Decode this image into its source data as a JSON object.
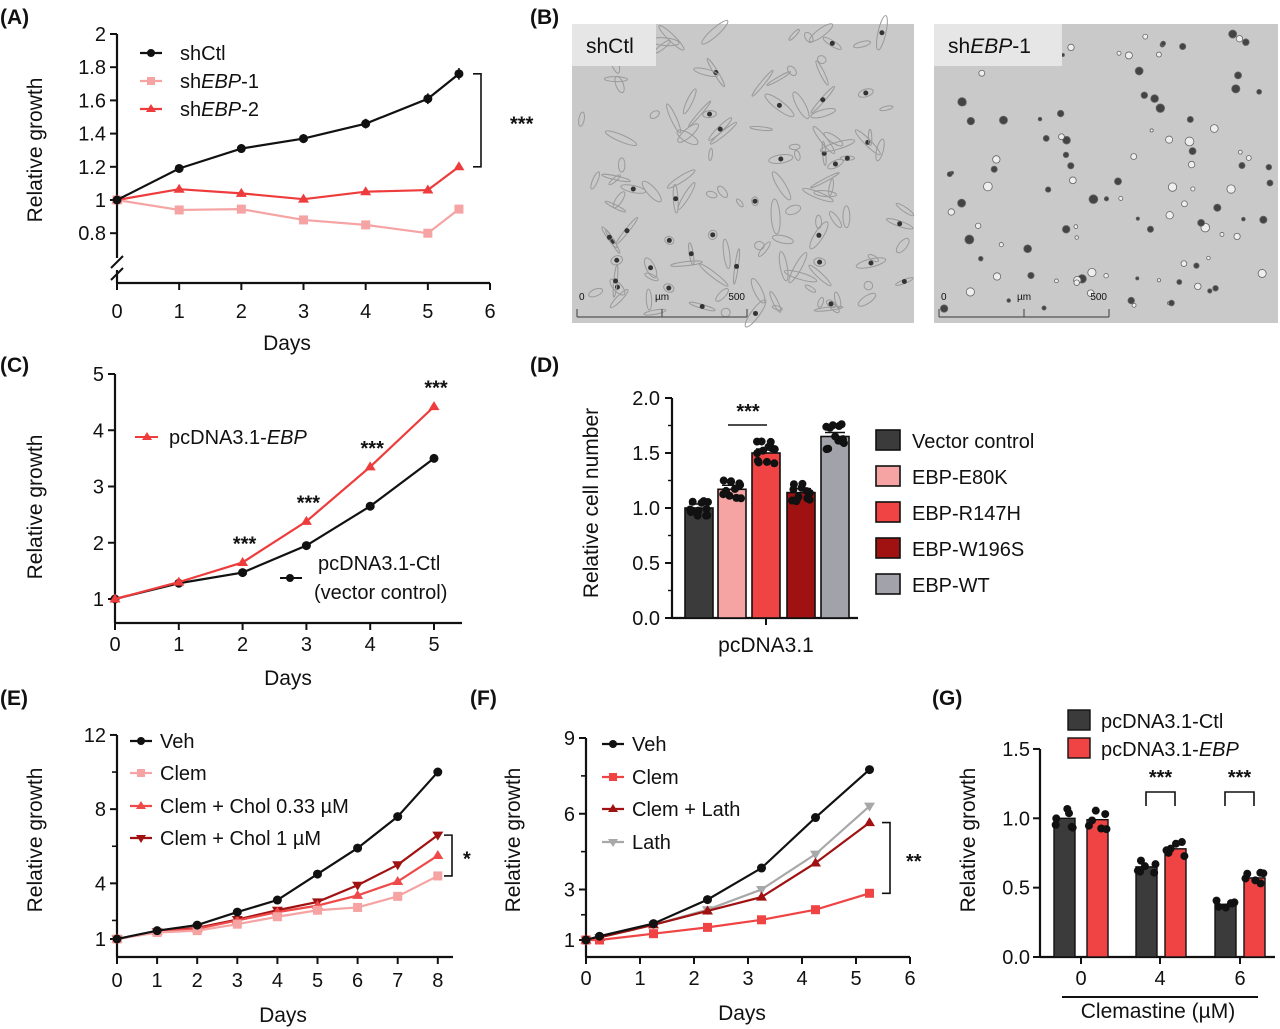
{
  "panels": [
    "(A)",
    "(B)",
    "(C)",
    "(D)",
    "(E)",
    "(F)",
    "(G)"
  ],
  "micrographs": [
    {
      "label": "shCtl",
      "scale": [
        "0",
        "µm",
        "500"
      ]
    },
    {
      "label_parts": [
        "sh",
        "EBP",
        "-1"
      ],
      "scale": [
        "0",
        "µm",
        "500"
      ]
    }
  ],
  "chart_data": [
    {
      "id": "A",
      "type": "line",
      "xlabel": "Days",
      "ylabel": "Relative growth",
      "xlim": [
        0,
        6
      ],
      "ylim": [
        0.8,
        2
      ],
      "y_axis_break": true,
      "xticks": [
        "0",
        "1",
        "2",
        "3",
        "4",
        "5",
        "6"
      ],
      "yticks": [
        "0.8",
        "1",
        "1.2",
        "1.4",
        "1.6",
        "1.8",
        "2"
      ],
      "series": [
        {
          "label_parts": [
            "shCtl",
            "",
            ""
          ],
          "color": "#111111",
          "marker": "circle",
          "x": [
            0,
            1,
            2,
            3,
            4,
            5,
            5.5
          ],
          "y": [
            1,
            1.19,
            1.31,
            1.37,
            1.46,
            1.61,
            1.76
          ]
        },
        {
          "label_parts": [
            "sh",
            "EBP",
            "-1"
          ],
          "color": "#f5a3a3",
          "marker": "square",
          "x": [
            0,
            1,
            2,
            3,
            4,
            5,
            5.5
          ],
          "y": [
            1,
            0.94,
            0.945,
            0.88,
            0.85,
            0.8,
            0.945
          ]
        },
        {
          "label_parts": [
            "sh",
            "EBP",
            "-2"
          ],
          "color": "#ee3b3b",
          "marker": "triangle-up",
          "x": [
            0,
            1,
            2,
            3,
            4,
            5,
            5.5
          ],
          "y": [
            1,
            1.065,
            1.04,
            1.005,
            1.05,
            1.06,
            1.2
          ]
        }
      ],
      "annotations": [
        {
          "text": "***",
          "between": [
            1.76,
            1.2
          ]
        }
      ]
    },
    {
      "id": "C",
      "type": "line",
      "xlabel": "Days",
      "ylabel": "Relative growth",
      "xlim": [
        0,
        5
      ],
      "ylim": [
        1,
        5
      ],
      "xticks": [
        "0",
        "1",
        "2",
        "3",
        "4",
        "5"
      ],
      "yticks": [
        "1",
        "2",
        "3",
        "4",
        "5"
      ],
      "series": [
        {
          "label_parts": [
            "pcDNA3.1-",
            "EBP",
            ""
          ],
          "color": "#ee3b3b",
          "marker": "triangle-up",
          "x": [
            0,
            1,
            2,
            3,
            4,
            5
          ],
          "y": [
            1,
            1.3,
            1.65,
            2.38,
            3.35,
            4.42
          ]
        },
        {
          "label_parts": [
            "pcDNA3.1-Ctl",
            "",
            ""
          ],
          "label2": "(vector control)",
          "color": "#111111",
          "marker": "circle",
          "x": [
            0,
            1,
            2,
            3,
            4,
            5
          ],
          "y": [
            1,
            1.28,
            1.47,
            1.95,
            2.65,
            3.5
          ]
        }
      ],
      "annotations": [
        {
          "text": "***",
          "x": 2
        },
        {
          "text": "***",
          "x": 3
        },
        {
          "text": "***",
          "x": 4
        },
        {
          "text": "***",
          "x": 5
        }
      ]
    },
    {
      "id": "D",
      "type": "bar",
      "xlabel": "pcDNA3.1",
      "ylabel": "Relative cell number",
      "ylim": [
        0,
        2
      ],
      "yticks": [
        "0.0",
        "0.5",
        "1.0",
        "1.5",
        "2.0"
      ],
      "categories": [
        "Vector control",
        "EBP-E80K",
        "EBP-R147H",
        "EBP-W196S",
        "EBP-WT"
      ],
      "values": [
        1.0,
        1.17,
        1.5,
        1.14,
        1.65
      ],
      "colors": [
        "#3b3b3b",
        "#f5a3a3",
        "#f04444",
        "#a01212",
        "#a2a2aa"
      ],
      "annotations": [
        {
          "text": "***",
          "between_bars": [
            1,
            2
          ]
        }
      ]
    },
    {
      "id": "E",
      "type": "line",
      "xlabel": "Days",
      "ylabel": "Relative growth",
      "xlim": [
        0,
        8
      ],
      "ylim": [
        1,
        12
      ],
      "xticks": [
        "0",
        "1",
        "2",
        "3",
        "4",
        "5",
        "6",
        "7",
        "8"
      ],
      "yticks": [
        "1",
        "4",
        "8",
        "12"
      ],
      "series": [
        {
          "label_parts": [
            "Veh",
            "",
            ""
          ],
          "color": "#111111",
          "marker": "circle",
          "x": [
            0,
            1,
            2,
            3,
            4,
            5,
            6,
            7,
            8
          ],
          "y": [
            1,
            1.45,
            1.75,
            2.45,
            3.1,
            4.5,
            5.9,
            7.6,
            10.0
          ]
        },
        {
          "label_parts": [
            "Clem",
            "",
            ""
          ],
          "color": "#f5a3a3",
          "marker": "square",
          "x": [
            0,
            1,
            2,
            3,
            4,
            5,
            6,
            7,
            8
          ],
          "y": [
            1,
            1.35,
            1.45,
            1.8,
            2.2,
            2.55,
            2.7,
            3.3,
            4.4
          ]
        },
        {
          "label_parts": [
            "Clem + Chol 0.33 µM",
            "",
            ""
          ],
          "color": "#ee4a4a",
          "marker": "triangle-up",
          "x": [
            0,
            1,
            2,
            3,
            4,
            5,
            6,
            7,
            8
          ],
          "y": [
            1,
            1.4,
            1.55,
            2.0,
            2.45,
            2.8,
            3.35,
            4.1,
            5.5
          ]
        },
        {
          "label_parts": [
            "Clem + Chol 1 µM",
            "",
            ""
          ],
          "color": "#a01212",
          "marker": "triangle-down",
          "x": [
            0,
            1,
            2,
            3,
            4,
            5,
            6,
            7,
            8
          ],
          "y": [
            1,
            1.4,
            1.6,
            2.05,
            2.55,
            3.0,
            3.9,
            5.0,
            6.6
          ]
        }
      ],
      "annotations": [
        {
          "text": "*",
          "between": [
            6.6,
            4.4
          ]
        }
      ]
    },
    {
      "id": "F",
      "type": "line",
      "xlabel": "Days",
      "ylabel": "Relative growth",
      "xlim": [
        0,
        6
      ],
      "ylim": [
        1,
        9
      ],
      "xticks": [
        "0",
        "1",
        "2",
        "3",
        "4",
        "5",
        "6"
      ],
      "yticks": [
        "1",
        "3",
        "6",
        "9"
      ],
      "series": [
        {
          "label_parts": [
            "Veh",
            "",
            ""
          ],
          "color": "#111111",
          "marker": "circle",
          "x": [
            0,
            0.25,
            1.25,
            2.25,
            3.25,
            4.25,
            5.25
          ],
          "y": [
            1,
            1.15,
            1.65,
            2.6,
            3.85,
            5.85,
            7.75
          ]
        },
        {
          "label_parts": [
            "Clem",
            "",
            ""
          ],
          "color": "#f04444",
          "marker": "square",
          "x": [
            0,
            0.25,
            1.25,
            2.25,
            3.25,
            4.25,
            5.25
          ],
          "y": [
            1,
            1.0,
            1.25,
            1.5,
            1.8,
            2.2,
            2.85
          ]
        },
        {
          "label_parts": [
            "Clem + Lath",
            "",
            ""
          ],
          "color": "#a01212",
          "marker": "triangle-up",
          "x": [
            0,
            0.25,
            1.25,
            2.25,
            3.25,
            4.25,
            5.25
          ],
          "y": [
            1,
            1.1,
            1.6,
            2.15,
            2.7,
            4.05,
            5.65
          ]
        },
        {
          "label_parts": [
            "Lath",
            "",
            ""
          ],
          "color": "#a8a8a8",
          "marker": "triangle-down",
          "x": [
            0,
            0.25,
            1.25,
            2.25,
            3.25,
            4.25,
            5.25
          ],
          "y": [
            1,
            1.1,
            1.6,
            2.2,
            3.0,
            4.4,
            6.3
          ]
        }
      ],
      "annotations": [
        {
          "text": "**",
          "between": [
            5.65,
            2.85
          ]
        }
      ]
    },
    {
      "id": "G",
      "type": "bar",
      "xlabel": "Clemastine (µM)",
      "ylabel": "Relative growth",
      "ylim": [
        0,
        1.5
      ],
      "yticks": [
        "0.0",
        "0.5",
        "1.0",
        "1.5"
      ],
      "categories": [
        "0",
        "4",
        "6"
      ],
      "series": [
        {
          "label_parts": [
            "pcDNA3.1-Ctl",
            "",
            ""
          ],
          "color": "#3b3b3b",
          "values": [
            1.0,
            0.65,
            0.38
          ]
        },
        {
          "label_parts": [
            "pcDNA3.1-",
            "EBP",
            ""
          ],
          "color": "#f04444",
          "values": [
            0.99,
            0.78,
            0.57
          ]
        }
      ],
      "annotations": [
        {
          "text": "***",
          "category": 1
        },
        {
          "text": "***",
          "category": 2
        }
      ]
    }
  ]
}
